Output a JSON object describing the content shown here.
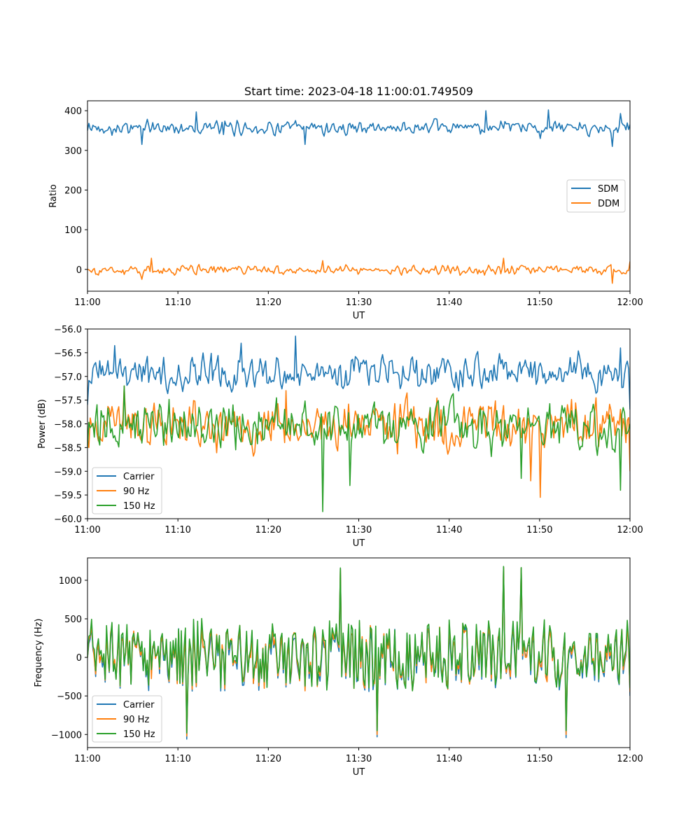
{
  "chart_data": [
    {
      "type": "line",
      "title": "Start time: 2023-04-18 11:00:01.749509",
      "xlabel": "UT",
      "ylabel": "Ratio",
      "xlim": [
        "11:00",
        "12:00"
      ],
      "ylim": [
        -55,
        425
      ],
      "xticks": [
        "11:00",
        "11:10",
        "11:20",
        "11:30",
        "11:40",
        "11:50",
        "12:00"
      ],
      "yticks": [
        "0",
        "100",
        "200",
        "300",
        "400"
      ],
      "legend": {
        "position": "center-right"
      },
      "series": [
        {
          "name": "SDM",
          "color": "#1f77b4",
          "mean": 357,
          "amp": 13,
          "x": [
            "11:00",
            "11:06",
            "11:12",
            "11:15",
            "11:24",
            "11:30",
            "11:44",
            "11:50",
            "11:51",
            "11:58",
            "11:59",
            "12:00"
          ],
          "y": [
            350,
            315,
            397,
            340,
            315,
            370,
            400,
            330,
            402,
            310,
            393,
            365
          ]
        },
        {
          "name": "DDM",
          "color": "#ff7f0e",
          "mean": -2,
          "amp": 9,
          "x": [
            "11:00",
            "11:06",
            "11:07",
            "11:26",
            "11:46",
            "11:48",
            "11:58",
            "12:00"
          ],
          "y": [
            0,
            -25,
            28,
            22,
            28,
            10,
            -35,
            20
          ]
        }
      ]
    },
    {
      "type": "line",
      "xlabel": "UT",
      "ylabel": "Power (dB)",
      "xlim": [
        "11:00",
        "12:00"
      ],
      "ylim": [
        -60.0,
        -56.0
      ],
      "xticks": [
        "11:00",
        "11:10",
        "11:20",
        "11:30",
        "11:40",
        "11:50",
        "12:00"
      ],
      "yticks": [
        "−56.0",
        "−56.5",
        "−57.0",
        "−57.5",
        "−58.0",
        "−58.5",
        "−59.0",
        "−59.5",
        "−60.0"
      ],
      "legend": {
        "position": "lower-left"
      },
      "series": [
        {
          "name": "Carrier",
          "color": "#1f77b4",
          "mean": -56.95,
          "amp": 0.28,
          "x": [
            "11:00",
            "11:03",
            "11:17",
            "11:23",
            "11:59",
            "12:00"
          ],
          "y": [
            -57.6,
            -56.35,
            -56.3,
            -56.15,
            -56.4,
            -57.7
          ]
        },
        {
          "name": "90 Hz",
          "color": "#ff7f0e",
          "mean": -58.05,
          "amp": 0.38,
          "x": [
            "11:00",
            "11:04",
            "11:22",
            "11:49",
            "11:50",
            "12:00"
          ],
          "y": [
            -58.3,
            -57.2,
            -57.3,
            -59.2,
            -59.55,
            -59.0
          ]
        },
        {
          "name": "150 Hz",
          "color": "#2ca02c",
          "mean": -58.05,
          "amp": 0.38,
          "x": [
            "11:00",
            "11:04",
            "11:26",
            "11:29",
            "11:48",
            "11:59",
            "12:00"
          ],
          "y": [
            -58.5,
            -57.2,
            -59.85,
            -59.3,
            -59.15,
            -59.4,
            -58.0
          ]
        }
      ]
    },
    {
      "type": "line",
      "xlabel": "UT",
      "ylabel": "Frequency (Hz)",
      "xlim": [
        "11:00",
        "12:00"
      ],
      "ylim": [
        -1170,
        1290
      ],
      "xticks": [
        "11:00",
        "11:10",
        "11:20",
        "11:30",
        "11:40",
        "11:50",
        "12:00"
      ],
      "yticks": [
        "1000",
        "500",
        "0",
        "−500",
        "−1000"
      ],
      "legend": {
        "position": "lower-left"
      },
      "series": [
        {
          "name": "Carrier",
          "color": "#1f77b4",
          "mean": -20,
          "amp": 340,
          "x": [
            "11:00",
            "11:11",
            "11:28",
            "11:32",
            "11:46",
            "11:48",
            "11:53",
            "12:00"
          ],
          "y": [
            0,
            -1060,
            1150,
            -1030,
            1170,
            1160,
            -1040,
            -500
          ]
        },
        {
          "name": "90 Hz",
          "color": "#ff7f0e",
          "mean": 0,
          "amp": 340,
          "x": [
            "11:00",
            "11:11",
            "11:28",
            "11:32",
            "11:46",
            "11:48",
            "11:53",
            "12:00"
          ],
          "y": [
            0,
            -1020,
            1150,
            -1000,
            1170,
            1160,
            -1000,
            -450
          ]
        },
        {
          "name": "150 Hz",
          "color": "#2ca02c",
          "mean": 30,
          "amp": 360,
          "x": [
            "11:00",
            "11:11",
            "11:28",
            "11:32",
            "11:46",
            "11:48",
            "11:53",
            "12:00"
          ],
          "y": [
            0,
            -980,
            1160,
            -950,
            1180,
            1165,
            -950,
            -400
          ]
        }
      ]
    }
  ]
}
